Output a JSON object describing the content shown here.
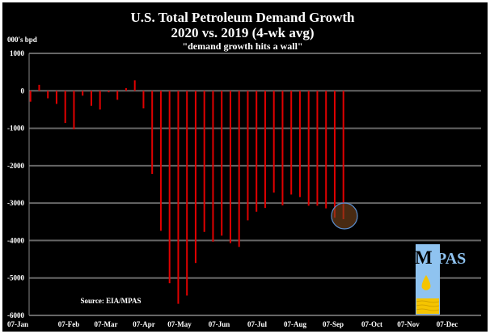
{
  "chart_data": {
    "type": "bar",
    "title": "U.S. Total Petroleum Demand Growth",
    "subtitle": "2020 vs. 2019 (4-wk avg)",
    "tagline": "\"demand growth hits a wall\"",
    "ylabel": "000's bpd",
    "ylim": [
      -6000,
      1000
    ],
    "yticks": [
      1000,
      0,
      -1000,
      -2000,
      -3000,
      -4000,
      -5000,
      -6000
    ],
    "xtick_labels": [
      "07-Jan",
      "07-Feb",
      "07-Mar",
      "07-Apr",
      "07-May",
      "07-Jun",
      "07-Jul",
      "07-Aug",
      "07-Sep",
      "07-Oct",
      "07-Nov",
      "07-Dec"
    ],
    "grid": true,
    "bar_color": "#e00000",
    "background": "#000000",
    "values": [
      -290,
      160,
      -200,
      -350,
      -860,
      -1030,
      -130,
      -400,
      -500,
      -40,
      -240,
      70,
      280,
      -470,
      -2220,
      -3740,
      -5140,
      -5690,
      -5470,
      -4600,
      -3770,
      -4030,
      -3870,
      -4070,
      -4170,
      -3460,
      -3230,
      -3130,
      -2720,
      -3060,
      -2770,
      -2840,
      -3070,
      -3070,
      -3140,
      -3390,
      -3430
    ],
    "highlight": "last two weeks circled",
    "source": "Source: EIA/MPAS"
  },
  "logo": {
    "text": "MPAS",
    "color": "#8fc3f0"
  }
}
